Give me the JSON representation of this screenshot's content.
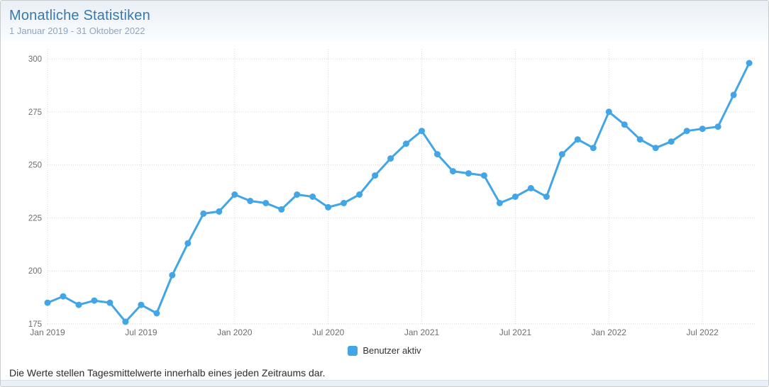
{
  "header": {
    "title": "Monatliche Statistiken",
    "subtitle": "1 Januar 2019 - 31 Oktober 2022"
  },
  "legend": {
    "label": "Benutzer aktiv"
  },
  "footer": {
    "note": "Die Werte stellen Tagesmittelwerte innerhalb eines jeden Zeitraums dar."
  },
  "colors": {
    "line": "#42a5e5",
    "title": "#3878ae",
    "subtitle": "#8fa6c1",
    "grid": "#d9d9d9",
    "tick": "#6d6d6d",
    "header_bg_top": "#e9eff6",
    "header_bg_bottom": "#fbfdfe",
    "strip_bg": "#eaf0f7",
    "strip_border": "#dbe2ea",
    "card_border": "#c9ccce"
  },
  "chart_data": {
    "type": "line",
    "title": "Monatliche Statistiken",
    "xlabel": "",
    "ylabel": "",
    "ylim": [
      175,
      300
    ],
    "yticks": [
      175,
      200,
      225,
      250,
      275,
      300
    ],
    "grid": "dotted",
    "legend_position": "bottom",
    "categories": [
      "Jan 2019",
      "Feb 2019",
      "Mär 2019",
      "Apr 2019",
      "Mai 2019",
      "Jun 2019",
      "Jul 2019",
      "Aug 2019",
      "Sep 2019",
      "Okt 2019",
      "Nov 2019",
      "Dez 2019",
      "Jan 2020",
      "Feb 2020",
      "Mär 2020",
      "Apr 2020",
      "Mai 2020",
      "Jun 2020",
      "Jul 2020",
      "Aug 2020",
      "Sep 2020",
      "Okt 2020",
      "Nov 2020",
      "Dez 2020",
      "Jan 2021",
      "Feb 2021",
      "Mär 2021",
      "Apr 2021",
      "Mai 2021",
      "Jun 2021",
      "Jul 2021",
      "Aug 2021",
      "Sep 2021",
      "Okt 2021",
      "Nov 2021",
      "Dez 2021",
      "Jan 2022",
      "Feb 2022",
      "Mär 2022",
      "Apr 2022",
      "Mai 2022",
      "Jun 2022",
      "Jul 2022",
      "Aug 2022",
      "Sep 2022",
      "Okt 2022"
    ],
    "series": [
      {
        "name": "Benutzer aktiv",
        "values": [
          185,
          188,
          184,
          186,
          185,
          176,
          184,
          180,
          198,
          213,
          227,
          228,
          236,
          233,
          232,
          229,
          236,
          235,
          230,
          232,
          236,
          245,
          253,
          260,
          266,
          255,
          247,
          246,
          245,
          232,
          235,
          239,
          235,
          255,
          262,
          258,
          275,
          269,
          262,
          258,
          261,
          266,
          267,
          268,
          283,
          298
        ]
      }
    ],
    "xticks": [
      {
        "i": 0,
        "label": "Jan 2019"
      },
      {
        "i": 6,
        "label": "Jul 2019"
      },
      {
        "i": 12,
        "label": "Jan 2020"
      },
      {
        "i": 18,
        "label": "Jul 2020"
      },
      {
        "i": 24,
        "label": "Jan 2021"
      },
      {
        "i": 30,
        "label": "Jul 2021"
      },
      {
        "i": 36,
        "label": "Jan 2022"
      },
      {
        "i": 42,
        "label": "Jul 2022"
      }
    ]
  }
}
